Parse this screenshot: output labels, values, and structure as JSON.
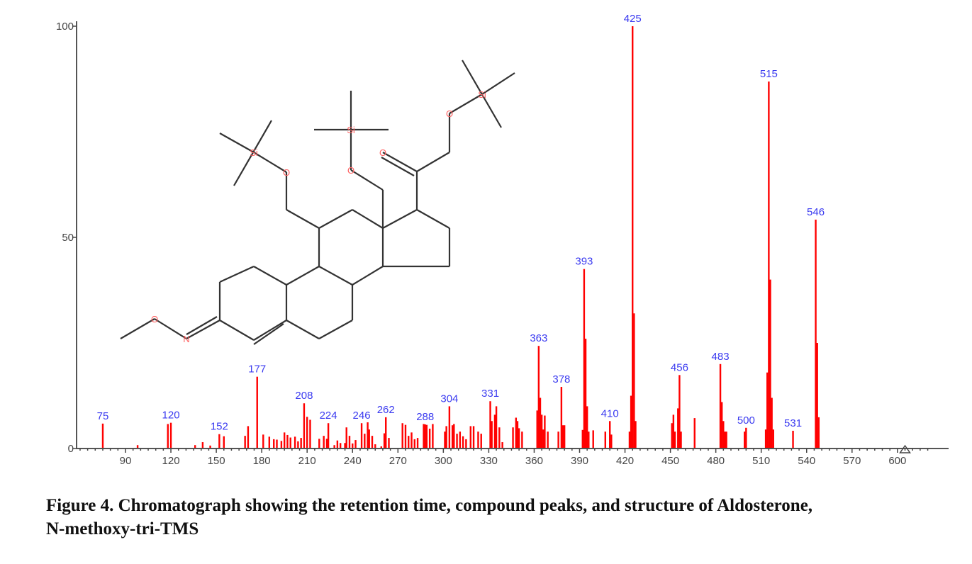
{
  "caption": {
    "line1": "Figure 4. Chromatograph showing the retention time, compound peaks, and structure of Aldosterone,",
    "line2": "N-methoxy-tri-TMS"
  },
  "chart_data": {
    "type": "bar",
    "title": "",
    "xlabel": "",
    "ylabel": "",
    "xlim": [
      58,
      623
    ],
    "ylim": [
      0,
      100
    ],
    "x_ticks": [
      90,
      120,
      150,
      180,
      210,
      240,
      270,
      300,
      330,
      360,
      390,
      420,
      450,
      480,
      510,
      540,
      570,
      600
    ],
    "y_ticks": [
      0,
      50,
      100
    ],
    "grid": false,
    "bar_color": "#ff0000",
    "label_color": "#3a3af0",
    "labeled_peaks": [
      [
        75,
        5.9
      ],
      [
        120,
        6.1
      ],
      [
        152,
        3.4
      ],
      [
        177,
        17
      ],
      [
        208,
        10.7
      ],
      [
        224,
        6
      ],
      [
        246,
        6
      ],
      [
        262,
        7.4
      ],
      [
        288,
        5.7
      ],
      [
        304,
        10
      ],
      [
        331,
        11.2
      ],
      [
        363,
        24.3
      ],
      [
        378,
        14.6
      ],
      [
        393,
        42.5
      ],
      [
        410,
        6.5
      ],
      [
        425,
        100
      ],
      [
        456,
        17.4
      ],
      [
        483,
        20
      ],
      [
        500,
        4.9
      ],
      [
        515,
        86.9
      ],
      [
        531,
        4.2
      ],
      [
        546,
        54.2
      ]
    ],
    "minor_peaks": [
      [
        98,
        0.8
      ],
      [
        118,
        5.8
      ],
      [
        136,
        0.8
      ],
      [
        141,
        1.5
      ],
      [
        146,
        0.7
      ],
      [
        155,
        2.9
      ],
      [
        169,
        3
      ],
      [
        171,
        5.3
      ],
      [
        181,
        3.3
      ],
      [
        185,
        2.8
      ],
      [
        188,
        2.2
      ],
      [
        190,
        2.1
      ],
      [
        193,
        1.8
      ],
      [
        195,
        3.8
      ],
      [
        197,
        3.2
      ],
      [
        199,
        2.6
      ],
      [
        202,
        2.8
      ],
      [
        204,
        1.7
      ],
      [
        206,
        2.5
      ],
      [
        210,
        7.5
      ],
      [
        212,
        6.8
      ],
      [
        218,
        2.3
      ],
      [
        221,
        3
      ],
      [
        223,
        2.3
      ],
      [
        228,
        0.8
      ],
      [
        230,
        1.9
      ],
      [
        232,
        1.3
      ],
      [
        235,
        1.3
      ],
      [
        236,
        5
      ],
      [
        238,
        3
      ],
      [
        240,
        1.2
      ],
      [
        242,
        2
      ],
      [
        248,
        3.5
      ],
      [
        250,
        6.2
      ],
      [
        251,
        4.5
      ],
      [
        253,
        3
      ],
      [
        255,
        1
      ],
      [
        259,
        0.5
      ],
      [
        261,
        3.6
      ],
      [
        264,
        2.5
      ],
      [
        273,
        6
      ],
      [
        275,
        5.6
      ],
      [
        277,
        3
      ],
      [
        279,
        3.8
      ],
      [
        281,
        2.2
      ],
      [
        283,
        2.5
      ],
      [
        287,
        5.8
      ],
      [
        289,
        5.6
      ],
      [
        291,
        4.7
      ],
      [
        293,
        5.8
      ],
      [
        301,
        4
      ],
      [
        302,
        5.3
      ],
      [
        306,
        5.5
      ],
      [
        307,
        5.8
      ],
      [
        309,
        3.5
      ],
      [
        311,
        4
      ],
      [
        313,
        2.9
      ],
      [
        315,
        2.2
      ],
      [
        318,
        5.3
      ],
      [
        320,
        5.3
      ],
      [
        323,
        4
      ],
      [
        325,
        3.5
      ],
      [
        332,
        6.5
      ],
      [
        334,
        8
      ],
      [
        335,
        10
      ],
      [
        337,
        5
      ],
      [
        339,
        1.5
      ],
      [
        346,
        5
      ],
      [
        348,
        7.3
      ],
      [
        349,
        6.5
      ],
      [
        350,
        4.8
      ],
      [
        352,
        4
      ],
      [
        362,
        9
      ],
      [
        364,
        12
      ],
      [
        365,
        8
      ],
      [
        366,
        4.5
      ],
      [
        367,
        7.8
      ],
      [
        369,
        4
      ],
      [
        376,
        4
      ],
      [
        379,
        5.5
      ],
      [
        380,
        5.5
      ],
      [
        392,
        4.4
      ],
      [
        394,
        26
      ],
      [
        395,
        10
      ],
      [
        396,
        4
      ],
      [
        399,
        4.3
      ],
      [
        407,
        4
      ],
      [
        411,
        3.3
      ],
      [
        423,
        4
      ],
      [
        424,
        12.5
      ],
      [
        426,
        32
      ],
      [
        427,
        6.5
      ],
      [
        451,
        6
      ],
      [
        452,
        8
      ],
      [
        453,
        4
      ],
      [
        455,
        9.5
      ],
      [
        457,
        4
      ],
      [
        466,
        7.2
      ],
      [
        484,
        11
      ],
      [
        485,
        6.5
      ],
      [
        486,
        4
      ],
      [
        487,
        4
      ],
      [
        499,
        4
      ],
      [
        513,
        4.5
      ],
      [
        514,
        18
      ],
      [
        516,
        40
      ],
      [
        517,
        12
      ],
      [
        518,
        4.5
      ],
      [
        547,
        25
      ],
      [
        548,
        7.4
      ]
    ]
  },
  "structure": {
    "atoms": {
      "oxygen": "O",
      "silicon": "Si",
      "nitrogen": "N"
    }
  }
}
